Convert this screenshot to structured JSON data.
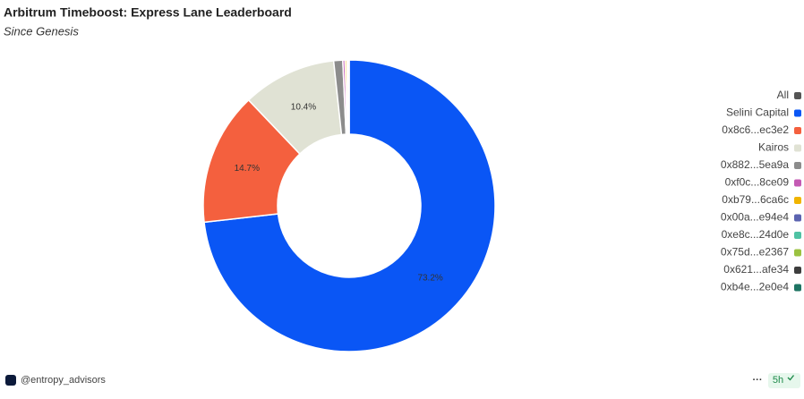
{
  "chart_data": {
    "type": "pie",
    "title": "Arbitrum Timeboost: Express Lane Leaderboard",
    "subtitle": "Since Genesis",
    "legend_all": "All",
    "categories": [
      "Selini Capital",
      "0x8c6...ec3e2",
      "Kairos",
      "0x882...5ea9a",
      "0xf0c...8ce09",
      "0xb79...6ca6c",
      "0x00a...e94e4",
      "0xe8c...24d0e",
      "0x75d...e2367",
      "0x621...afe34",
      "0xb4e...2e0e4"
    ],
    "values": [
      73.2,
      14.7,
      10.4,
      1.0,
      0.25,
      0.2,
      0.1,
      0.05,
      0.05,
      0.03,
      0.02
    ],
    "value_labels": [
      "73.2%",
      "14.7%",
      "10.4%",
      null,
      null,
      null,
      null,
      null,
      null,
      null,
      null
    ],
    "colors": [
      "#0a56f5",
      "#f4603e",
      "#e0e2d4",
      "#8c8c8c",
      "#c45ab3",
      "#f0b400",
      "#5b63b0",
      "#4fc2a3",
      "#9bc240",
      "#3d3d3d",
      "#1e7463"
    ],
    "legend": "right"
  },
  "footer": {
    "author": "@entropy_advisors",
    "age": "5h",
    "menu": "···"
  }
}
